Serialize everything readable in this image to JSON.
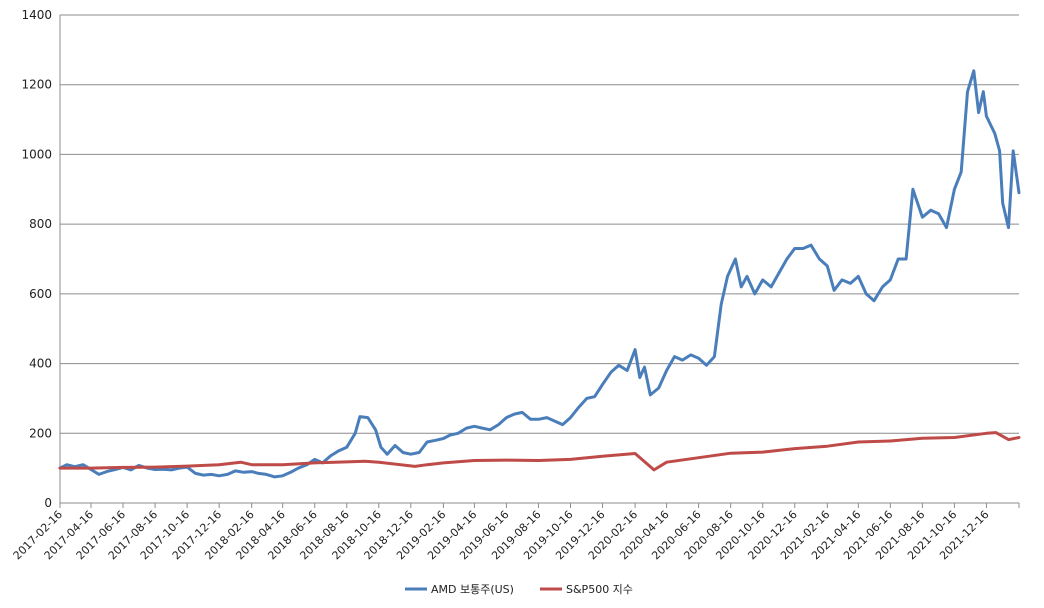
{
  "chart_data": {
    "type": "line",
    "title": "",
    "xlabel": "",
    "ylabel": "",
    "ylim": [
      0,
      1400
    ],
    "yticks": [
      0,
      200,
      400,
      600,
      800,
      1000,
      1200,
      1400
    ],
    "grid": "horizontal",
    "legend_position": "bottom",
    "x_start": "2017-02-16",
    "x_end": "2022-02-16",
    "x_tick_labels": [
      "2017-02-16",
      "2017-04-16",
      "2017-06-16",
      "2017-08-16",
      "2017-10-16",
      "2017-12-16",
      "2018-02-16",
      "2018-04-16",
      "2018-06-16",
      "2018-08-16",
      "2018-10-16",
      "2018-12-16",
      "2019-02-16",
      "2019-04-16",
      "2019-06-16",
      "2019-08-16",
      "2019-10-16",
      "2019-12-16",
      "2020-02-16",
      "2020-04-16",
      "2020-06-16",
      "2020-08-16",
      "2020-10-16",
      "2020-12-16",
      "2021-02-16",
      "2021-04-16",
      "2021-06-16",
      "2021-08-16",
      "2021-10-16",
      "2021-12-16"
    ],
    "series": [
      {
        "name": "AMD 보통주(US)",
        "color": "#4a7ebb",
        "points": [
          [
            "2017-02-16",
            100
          ],
          [
            "2017-03-01",
            110
          ],
          [
            "2017-03-16",
            104
          ],
          [
            "2017-04-01",
            110
          ],
          [
            "2017-04-16",
            96
          ],
          [
            "2017-05-01",
            82
          ],
          [
            "2017-05-16",
            90
          ],
          [
            "2017-06-01",
            96
          ],
          [
            "2017-06-16",
            102
          ],
          [
            "2017-07-01",
            95
          ],
          [
            "2017-07-16",
            108
          ],
          [
            "2017-08-01",
            100
          ],
          [
            "2017-08-16",
            96
          ],
          [
            "2017-09-01",
            97
          ],
          [
            "2017-09-16",
            95
          ],
          [
            "2017-10-01",
            100
          ],
          [
            "2017-10-16",
            103
          ],
          [
            "2017-11-01",
            85
          ],
          [
            "2017-11-16",
            80
          ],
          [
            "2017-12-01",
            82
          ],
          [
            "2017-12-16",
            78
          ],
          [
            "2018-01-01",
            82
          ],
          [
            "2018-01-16",
            92
          ],
          [
            "2018-02-01",
            88
          ],
          [
            "2018-02-16",
            90
          ],
          [
            "2018-03-01",
            85
          ],
          [
            "2018-03-16",
            82
          ],
          [
            "2018-04-01",
            75
          ],
          [
            "2018-04-16",
            78
          ],
          [
            "2018-05-01",
            88
          ],
          [
            "2018-05-16",
            100
          ],
          [
            "2018-06-01",
            110
          ],
          [
            "2018-06-16",
            125
          ],
          [
            "2018-07-01",
            115
          ],
          [
            "2018-07-16",
            135
          ],
          [
            "2018-08-01",
            150
          ],
          [
            "2018-08-16",
            160
          ],
          [
            "2018-09-01",
            200
          ],
          [
            "2018-09-10",
            248
          ],
          [
            "2018-09-25",
            245
          ],
          [
            "2018-10-10",
            210
          ],
          [
            "2018-10-20",
            160
          ],
          [
            "2018-11-01",
            140
          ],
          [
            "2018-11-16",
            165
          ],
          [
            "2018-12-01",
            145
          ],
          [
            "2018-12-16",
            140
          ],
          [
            "2019-01-01",
            145
          ],
          [
            "2019-01-16",
            175
          ],
          [
            "2019-02-01",
            180
          ],
          [
            "2019-02-16",
            185
          ],
          [
            "2019-03-01",
            195
          ],
          [
            "2019-03-16",
            200
          ],
          [
            "2019-04-01",
            215
          ],
          [
            "2019-04-16",
            220
          ],
          [
            "2019-05-01",
            215
          ],
          [
            "2019-05-16",
            210
          ],
          [
            "2019-06-01",
            225
          ],
          [
            "2019-06-16",
            245
          ],
          [
            "2019-07-01",
            255
          ],
          [
            "2019-07-16",
            260
          ],
          [
            "2019-08-01",
            240
          ],
          [
            "2019-08-16",
            240
          ],
          [
            "2019-09-01",
            245
          ],
          [
            "2019-09-16",
            235
          ],
          [
            "2019-10-01",
            225
          ],
          [
            "2019-10-16",
            245
          ],
          [
            "2019-11-01",
            275
          ],
          [
            "2019-11-16",
            300
          ],
          [
            "2019-12-01",
            305
          ],
          [
            "2019-12-16",
            340
          ],
          [
            "2020-01-01",
            375
          ],
          [
            "2020-01-16",
            395
          ],
          [
            "2020-02-01",
            380
          ],
          [
            "2020-02-16",
            440
          ],
          [
            "2020-02-25",
            360
          ],
          [
            "2020-03-05",
            390
          ],
          [
            "2020-03-16",
            310
          ],
          [
            "2020-04-01",
            330
          ],
          [
            "2020-04-16",
            380
          ],
          [
            "2020-05-01",
            420
          ],
          [
            "2020-05-16",
            410
          ],
          [
            "2020-06-01",
            425
          ],
          [
            "2020-06-16",
            415
          ],
          [
            "2020-07-01",
            395
          ],
          [
            "2020-07-16",
            420
          ],
          [
            "2020-07-29",
            570
          ],
          [
            "2020-08-10",
            650
          ],
          [
            "2020-08-25",
            700
          ],
          [
            "2020-09-05",
            620
          ],
          [
            "2020-09-16",
            650
          ],
          [
            "2020-10-01",
            600
          ],
          [
            "2020-10-16",
            640
          ],
          [
            "2020-11-01",
            620
          ],
          [
            "2020-11-16",
            660
          ],
          [
            "2020-12-01",
            700
          ],
          [
            "2020-12-16",
            730
          ],
          [
            "2021-01-01",
            730
          ],
          [
            "2021-01-16",
            740
          ],
          [
            "2021-02-01",
            700
          ],
          [
            "2021-02-16",
            680
          ],
          [
            "2021-03-01",
            610
          ],
          [
            "2021-03-16",
            640
          ],
          [
            "2021-04-01",
            630
          ],
          [
            "2021-04-16",
            650
          ],
          [
            "2021-05-01",
            600
          ],
          [
            "2021-05-16",
            580
          ],
          [
            "2021-06-01",
            620
          ],
          [
            "2021-06-16",
            640
          ],
          [
            "2021-07-01",
            700
          ],
          [
            "2021-07-16",
            700
          ],
          [
            "2021-07-29",
            900
          ],
          [
            "2021-08-16",
            820
          ],
          [
            "2021-09-01",
            840
          ],
          [
            "2021-09-16",
            830
          ],
          [
            "2021-10-01",
            790
          ],
          [
            "2021-10-16",
            900
          ],
          [
            "2021-10-29",
            950
          ],
          [
            "2021-11-10",
            1180
          ],
          [
            "2021-11-22",
            1240
          ],
          [
            "2021-12-01",
            1120
          ],
          [
            "2021-12-10",
            1180
          ],
          [
            "2021-12-16",
            1110
          ],
          [
            "2022-01-01",
            1060
          ],
          [
            "2022-01-10",
            1010
          ],
          [
            "2022-01-16",
            860
          ],
          [
            "2022-01-27",
            790
          ],
          [
            "2022-02-05",
            1010
          ],
          [
            "2022-02-16",
            890
          ]
        ]
      },
      {
        "name": "S&P500 지수",
        "color": "#be4b48",
        "points": [
          [
            "2017-02-16",
            100
          ],
          [
            "2017-04-16",
            100
          ],
          [
            "2017-06-16",
            102
          ],
          [
            "2017-08-16",
            103
          ],
          [
            "2017-10-16",
            106
          ],
          [
            "2017-12-16",
            110
          ],
          [
            "2018-01-26",
            117
          ],
          [
            "2018-02-16",
            110
          ],
          [
            "2018-04-16",
            110
          ],
          [
            "2018-06-16",
            115
          ],
          [
            "2018-08-16",
            118
          ],
          [
            "2018-09-20",
            120
          ],
          [
            "2018-10-16",
            117
          ],
          [
            "2018-12-24",
            105
          ],
          [
            "2019-01-16",
            110
          ],
          [
            "2019-02-16",
            115
          ],
          [
            "2019-04-16",
            122
          ],
          [
            "2019-06-16",
            123
          ],
          [
            "2019-08-16",
            122
          ],
          [
            "2019-10-16",
            125
          ],
          [
            "2019-12-16",
            134
          ],
          [
            "2020-02-16",
            142
          ],
          [
            "2020-03-23",
            95
          ],
          [
            "2020-04-16",
            117
          ],
          [
            "2020-06-16",
            130
          ],
          [
            "2020-08-16",
            143
          ],
          [
            "2020-10-16",
            146
          ],
          [
            "2020-12-16",
            156
          ],
          [
            "2021-02-16",
            163
          ],
          [
            "2021-04-16",
            175
          ],
          [
            "2021-06-16",
            178
          ],
          [
            "2021-08-16",
            186
          ],
          [
            "2021-10-16",
            188
          ],
          [
            "2021-12-16",
            200
          ],
          [
            "2022-01-03",
            202
          ],
          [
            "2022-01-27",
            182
          ],
          [
            "2022-02-16",
            188
          ]
        ]
      }
    ]
  }
}
